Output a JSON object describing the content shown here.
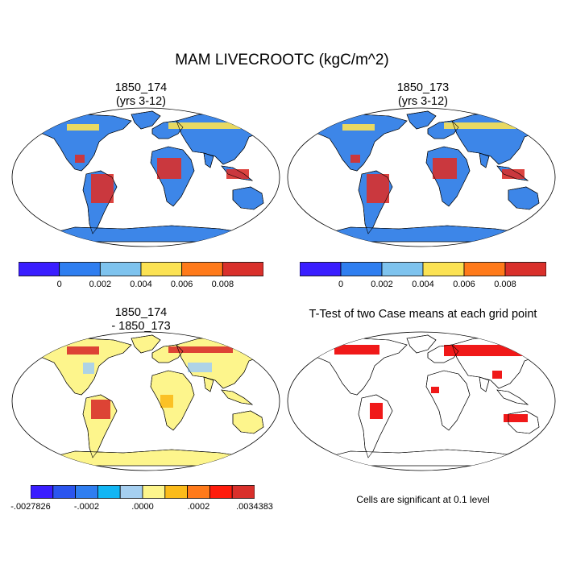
{
  "figure": {
    "title": "MAM LIVECROOTC (kgC/m^2)"
  },
  "panels": [
    {
      "id": "case1",
      "title_line1": "1850_174",
      "title_line2": "(yrs 3-12)"
    },
    {
      "id": "case2",
      "title_line1": "1850_173",
      "title_line2": "(yrs 3-12)"
    },
    {
      "id": "diff",
      "title_line1": "1850_174",
      "title_line2": "- 1850_173"
    },
    {
      "id": "ttest",
      "title_line1": "T-Test of two Case means at each grid point",
      "title_line2": ""
    }
  ],
  "colorbar_top": {
    "colors": [
      "#3a1eff",
      "#2f7ef0",
      "#7ec3ee",
      "#fbe253",
      "#ff7a1a",
      "#d9302b"
    ],
    "labels": [
      "0",
      "0.002",
      "0.004",
      "0.006",
      "0.008"
    ]
  },
  "colorbar_diff": {
    "colors": [
      "#3a1eff",
      "#2b55ee",
      "#2f7ef0",
      "#12b6f4",
      "#a5cff0",
      "#fdf58c",
      "#fbbb1a",
      "#ff7a1a",
      "#ff1c0c",
      "#d9302b"
    ],
    "labels": [
      "-.0027826",
      "-.0002",
      ".0000",
      ".0002",
      ".0034383"
    ]
  },
  "ttest_note": "Cells are significant at 0.1 level",
  "palette": {
    "ocean": "#ffffff",
    "land_blue": "#3d86e8",
    "tropics_red": "#d9302b",
    "boreal_yellow": "#fbe253",
    "diff_land": "#fdf58c",
    "significant": "#ee0000",
    "coast": "#000000"
  }
}
